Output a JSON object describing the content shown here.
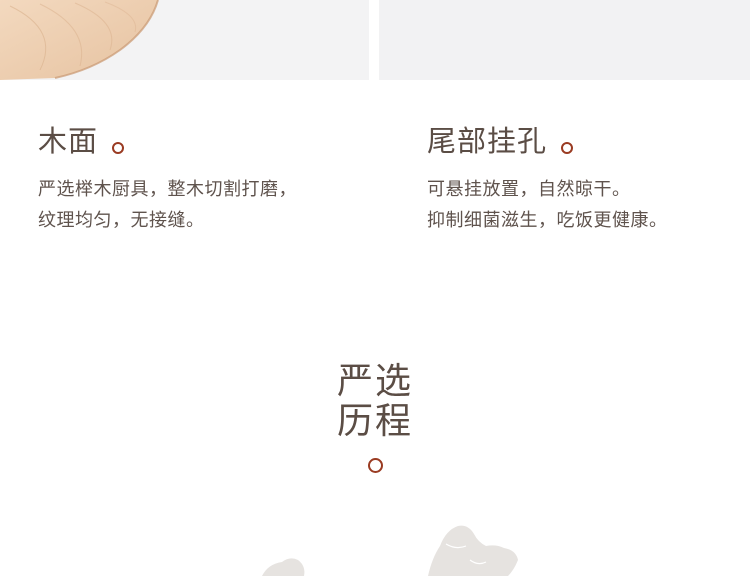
{
  "features": [
    {
      "title": "木面",
      "lines": [
        "严选榉木厨具，整木切割打磨，",
        "纹理均匀，无接缝。"
      ]
    },
    {
      "title": "尾部挂孔",
      "lines": [
        "可悬挂放置，自然晾干。",
        "抑制细菌滋生，吃饭更健康。"
      ]
    }
  ],
  "section": {
    "title_line1": "严选",
    "title_line2": "历程"
  },
  "colors": {
    "accent_ring": "#9a3b22",
    "text": "#5b4d45",
    "wood": "#eccdb0",
    "map": "#e6e3e0"
  }
}
